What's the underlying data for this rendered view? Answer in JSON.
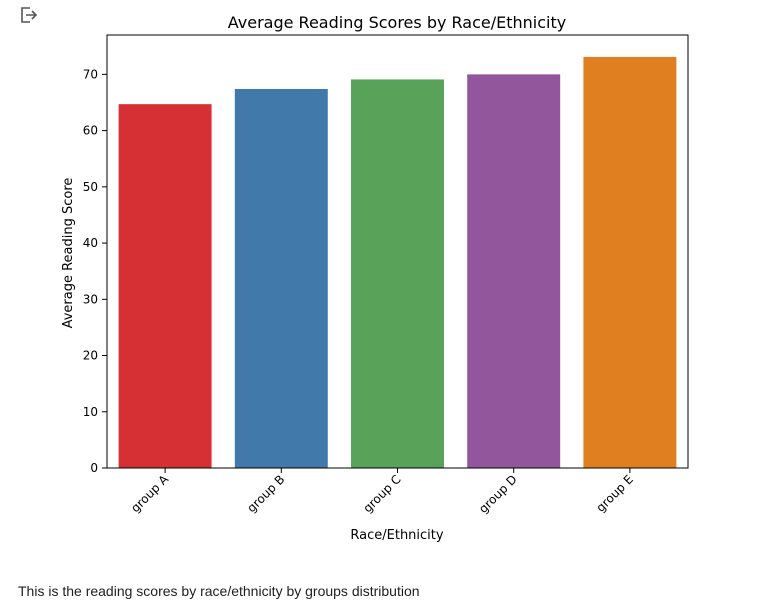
{
  "toolbar": {
    "output_icon": "open-output-icon"
  },
  "chart_data": {
    "type": "bar",
    "title": "Average Reading Scores by Race/Ethnicity",
    "xlabel": "Race/Ethnicity",
    "ylabel": "Average Reading Score",
    "categories": [
      "group A",
      "group B",
      "group C",
      "group D",
      "group E"
    ],
    "values": [
      64.7,
      67.4,
      69.1,
      70.0,
      73.1
    ],
    "colors": [
      "#d62f34",
      "#4279ab",
      "#58a359",
      "#92569c",
      "#e07f20"
    ],
    "ylim": [
      0,
      77
    ],
    "yticks": [
      0,
      10,
      20,
      30,
      40,
      50,
      60,
      70
    ],
    "grid": false,
    "legend": "none"
  },
  "caption": "This is the reading scores by race/ethnicity by groups distribution"
}
